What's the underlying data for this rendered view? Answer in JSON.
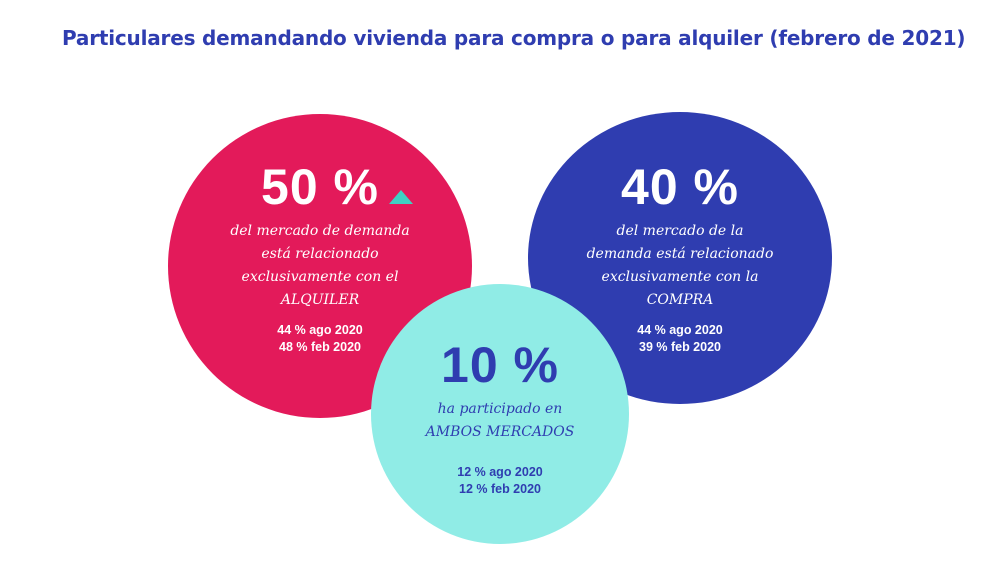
{
  "title": "Particulares demandando vivienda para compra o para alquiler (febrero de 2021)",
  "colors": {
    "title": "#2f3db0",
    "alquiler": "#e31a5a",
    "compra": "#2f3db0",
    "ambos": "#90ece6",
    "ambos_text": "#2f3db0",
    "trend_up": "#3fd0c2"
  },
  "circles": {
    "alquiler": {
      "value": "50 %",
      "trend_icon": "triangle-up-icon",
      "desc": [
        "del mercado de demanda",
        "está relacionado",
        "exclusivamente con el",
        "ALQUILER"
      ],
      "prev": [
        "44 % ago 2020",
        "48 % feb 2020"
      ]
    },
    "compra": {
      "value": "40 %",
      "desc": [
        "del mercado de la",
        "demanda está relacionado",
        "exclusivamente con la",
        "COMPRA"
      ],
      "prev": [
        "44 % ago 2020",
        "39 % feb 2020"
      ]
    },
    "ambos": {
      "value": "10 %",
      "desc": [
        "ha participado en",
        "AMBOS MERCADOS"
      ],
      "prev": [
        "12 % ago 2020",
        "12 % feb 2020"
      ]
    }
  }
}
